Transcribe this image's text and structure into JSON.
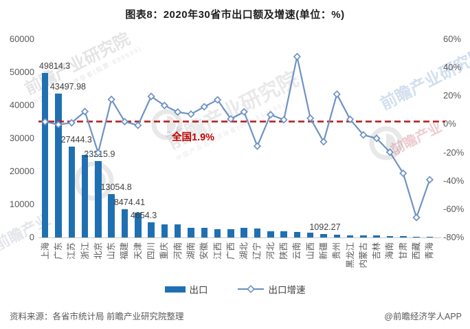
{
  "title": "图表8：2020年30省市出口额及增速(单位：%)",
  "chart_data": {
    "type": "bar+line combo",
    "title": "图表8：2020年30省市出口额及增速(单位：%)",
    "categories": [
      "上海",
      "广东",
      "江苏",
      "浙江",
      "北京",
      "山东",
      "福建",
      "天津",
      "四川",
      "重庆",
      "河南",
      "湖南",
      "安徽",
      "江西",
      "广西",
      "湖北",
      "辽宁",
      "河北",
      "陕西",
      "云南",
      "山西",
      "新疆",
      "贵州",
      "黑龙江",
      "内蒙古",
      "吉林",
      "海南",
      "甘肃",
      "西藏",
      "青海"
    ],
    "series": [
      {
        "name": "出口",
        "type": "bar",
        "axis": "left",
        "values": [
          49814.3,
          43497.98,
          27444.3,
          25050,
          23215.9,
          13054.8,
          8474.41,
          7480,
          4654.3,
          4020,
          3890,
          2820,
          2960,
          2440,
          2560,
          2900,
          2650,
          1940,
          1900,
          1750,
          1400,
          1092.27,
          890,
          690,
          610,
          560,
          510,
          350,
          260,
          300
        ]
      },
      {
        "name": "出口增速",
        "type": "line",
        "axis": "right",
        "unit": "%",
        "values": [
          1.7,
          -0.3,
          1.0,
          8.9,
          -20.2,
          17.5,
          1.8,
          -0.8,
          19.6,
          13.2,
          8.6,
          7.1,
          12.3,
          17.2,
          3.7,
          8.7,
          -15.5,
          6.7,
          3.1,
          47.7,
          4.2,
          -12.4,
          21.2,
          3.4,
          -7.6,
          -10.0,
          -19.8,
          -34.7,
          -65.9,
          -39.2
        ]
      }
    ],
    "bar_labels": {
      "0": "49814.3",
      "1": "43497.98",
      "2": "27444.3",
      "4": "23215.9",
      "5": "13054.8",
      "6": "8474.41",
      "8": "4654.3",
      "21": "1092.27"
    },
    "left_axis": {
      "min": 0,
      "max": 60000,
      "ticks": [
        "60000",
        "50000",
        "40000",
        "30000",
        "20000",
        "10000",
        "0"
      ]
    },
    "right_axis": {
      "min": -80,
      "max": 60,
      "ticks": [
        "60%",
        "40%",
        "20%",
        "0%",
        "-20%",
        "-40%",
        "-60%",
        "-80%"
      ]
    },
    "reference_line": {
      "label": "全国1.9%",
      "value": 1.9
    },
    "legend": [
      {
        "label": "出口"
      },
      {
        "label": "出口增速"
      }
    ],
    "grid": false,
    "legend_position": "bottom"
  },
  "colors": {
    "bar": "#1F70B2",
    "line": "#6E92C5",
    "reference_line": "#B22222",
    "reference_text": "#C00000",
    "axis_text": "#595959"
  },
  "footer": {
    "source": "资料来源：各省市统计局 前瞻产业研究院整理",
    "credit": "@前瞻经济学人APP"
  },
  "watermarks": {
    "brand": "前瞻产业研究院",
    "sub": "中国产业咨询领导者(股票:839599)",
    "short": "前瞻产业"
  }
}
